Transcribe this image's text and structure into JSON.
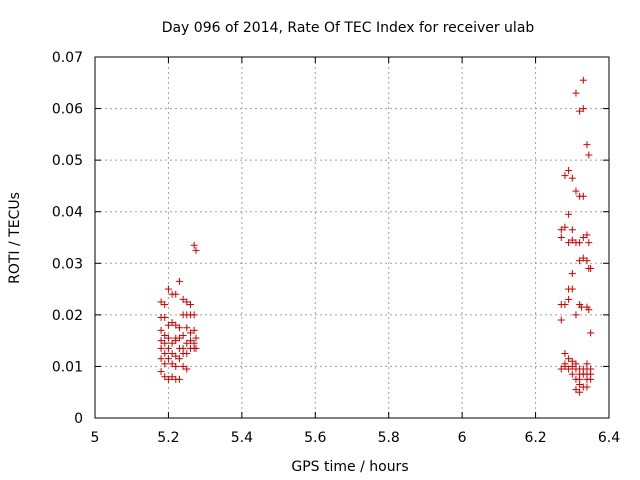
{
  "chart_data": {
    "type": "scatter",
    "title": "Day 096 of 2014, Rate Of TEC Index for receiver ulab",
    "xlabel": "GPS time / hours",
    "ylabel": "ROTI / TECUs",
    "xlim": [
      5,
      6.4
    ],
    "ylim": [
      0,
      0.07
    ],
    "x_ticks": [
      "5",
      "5.2",
      "5.4",
      "5.6",
      "5.8",
      "6",
      "6.2",
      "6.4"
    ],
    "y_ticks": [
      "0",
      "0.01",
      "0.02",
      "0.03",
      "0.04",
      "0.05",
      "0.06",
      "0.07"
    ],
    "grid": true,
    "marker": "+",
    "color": "#cc0000",
    "series": [
      {
        "name": "ROTI",
        "points": [
          [
            5.18,
            0.0225
          ],
          [
            5.19,
            0.022
          ],
          [
            5.2,
            0.025
          ],
          [
            5.21,
            0.024
          ],
          [
            5.22,
            0.024
          ],
          [
            5.23,
            0.0265
          ],
          [
            5.24,
            0.023
          ],
          [
            5.25,
            0.0225
          ],
          [
            5.26,
            0.022
          ],
          [
            5.27,
            0.0335
          ],
          [
            5.275,
            0.0325
          ],
          [
            5.18,
            0.0195
          ],
          [
            5.19,
            0.0195
          ],
          [
            5.24,
            0.02
          ],
          [
            5.25,
            0.02
          ],
          [
            5.26,
            0.02
          ],
          [
            5.27,
            0.02
          ],
          [
            5.18,
            0.017
          ],
          [
            5.2,
            0.018
          ],
          [
            5.21,
            0.0185
          ],
          [
            5.22,
            0.018
          ],
          [
            5.23,
            0.0175
          ],
          [
            5.25,
            0.0175
          ],
          [
            5.26,
            0.0165
          ],
          [
            5.27,
            0.017
          ],
          [
            5.19,
            0.016
          ],
          [
            5.2,
            0.0155
          ],
          [
            5.22,
            0.0155
          ],
          [
            5.23,
            0.0155
          ],
          [
            5.24,
            0.016
          ],
          [
            5.18,
            0.015
          ],
          [
            5.19,
            0.0145
          ],
          [
            5.21,
            0.0145
          ],
          [
            5.22,
            0.015
          ],
          [
            5.25,
            0.0145
          ],
          [
            5.26,
            0.015
          ],
          [
            5.27,
            0.0145
          ],
          [
            5.275,
            0.0155
          ],
          [
            5.18,
            0.0135
          ],
          [
            5.2,
            0.0135
          ],
          [
            5.23,
            0.0135
          ],
          [
            5.24,
            0.0135
          ],
          [
            5.26,
            0.0135
          ],
          [
            5.27,
            0.0135
          ],
          [
            5.275,
            0.0135
          ],
          [
            5.19,
            0.0125
          ],
          [
            5.21,
            0.0125
          ],
          [
            5.24,
            0.0125
          ],
          [
            5.25,
            0.0125
          ],
          [
            5.18,
            0.0115
          ],
          [
            5.2,
            0.0115
          ],
          [
            5.22,
            0.012
          ],
          [
            5.23,
            0.0115
          ],
          [
            5.19,
            0.0105
          ],
          [
            5.21,
            0.0105
          ],
          [
            5.22,
            0.01
          ],
          [
            5.24,
            0.01
          ],
          [
            5.25,
            0.0095
          ],
          [
            5.18,
            0.009
          ],
          [
            5.19,
            0.008
          ],
          [
            5.2,
            0.0075
          ],
          [
            5.21,
            0.008
          ],
          [
            5.22,
            0.0075
          ],
          [
            5.23,
            0.0075
          ],
          [
            6.33,
            0.0655
          ],
          [
            6.31,
            0.063
          ],
          [
            6.32,
            0.0595
          ],
          [
            6.33,
            0.06
          ],
          [
            6.34,
            0.053
          ],
          [
            6.345,
            0.051
          ],
          [
            6.29,
            0.048
          ],
          [
            6.28,
            0.047
          ],
          [
            6.3,
            0.0465
          ],
          [
            6.31,
            0.044
          ],
          [
            6.32,
            0.043
          ],
          [
            6.33,
            0.043
          ],
          [
            6.29,
            0.0395
          ],
          [
            6.27,
            0.0365
          ],
          [
            6.28,
            0.037
          ],
          [
            6.3,
            0.0365
          ],
          [
            6.27,
            0.035
          ],
          [
            6.29,
            0.034
          ],
          [
            6.32,
            0.034
          ],
          [
            6.33,
            0.035
          ],
          [
            6.34,
            0.0355
          ],
          [
            6.345,
            0.034
          ],
          [
            6.3,
            0.0345
          ],
          [
            6.31,
            0.034
          ],
          [
            6.33,
            0.031
          ],
          [
            6.34,
            0.0305
          ],
          [
            6.32,
            0.0305
          ],
          [
            6.345,
            0.029
          ],
          [
            6.35,
            0.029
          ],
          [
            6.3,
            0.028
          ],
          [
            6.29,
            0.025
          ],
          [
            6.3,
            0.025
          ],
          [
            6.29,
            0.023
          ],
          [
            6.27,
            0.022
          ],
          [
            6.28,
            0.022
          ],
          [
            6.32,
            0.022
          ],
          [
            6.325,
            0.0215
          ],
          [
            6.34,
            0.0215
          ],
          [
            6.345,
            0.021
          ],
          [
            6.31,
            0.02
          ],
          [
            6.27,
            0.019
          ],
          [
            6.35,
            0.0165
          ],
          [
            6.28,
            0.0125
          ],
          [
            6.29,
            0.0115
          ],
          [
            6.3,
            0.011
          ],
          [
            6.28,
            0.0105
          ],
          [
            6.31,
            0.0105
          ],
          [
            6.34,
            0.0105
          ],
          [
            6.27,
            0.0095
          ],
          [
            6.28,
            0.01
          ],
          [
            6.29,
            0.0095
          ],
          [
            6.3,
            0.01
          ],
          [
            6.31,
            0.0095
          ],
          [
            6.32,
            0.0095
          ],
          [
            6.33,
            0.0095
          ],
          [
            6.34,
            0.0095
          ],
          [
            6.35,
            0.0095
          ],
          [
            6.3,
            0.0085
          ],
          [
            6.32,
            0.0085
          ],
          [
            6.33,
            0.0085
          ],
          [
            6.34,
            0.0085
          ],
          [
            6.35,
            0.0085
          ],
          [
            6.31,
            0.0075
          ],
          [
            6.32,
            0.0075
          ],
          [
            6.34,
            0.0075
          ],
          [
            6.35,
            0.0075
          ],
          [
            6.32,
            0.0065
          ],
          [
            6.33,
            0.006
          ],
          [
            6.34,
            0.006
          ],
          [
            6.31,
            0.0055
          ],
          [
            6.32,
            0.005
          ]
        ]
      }
    ]
  }
}
